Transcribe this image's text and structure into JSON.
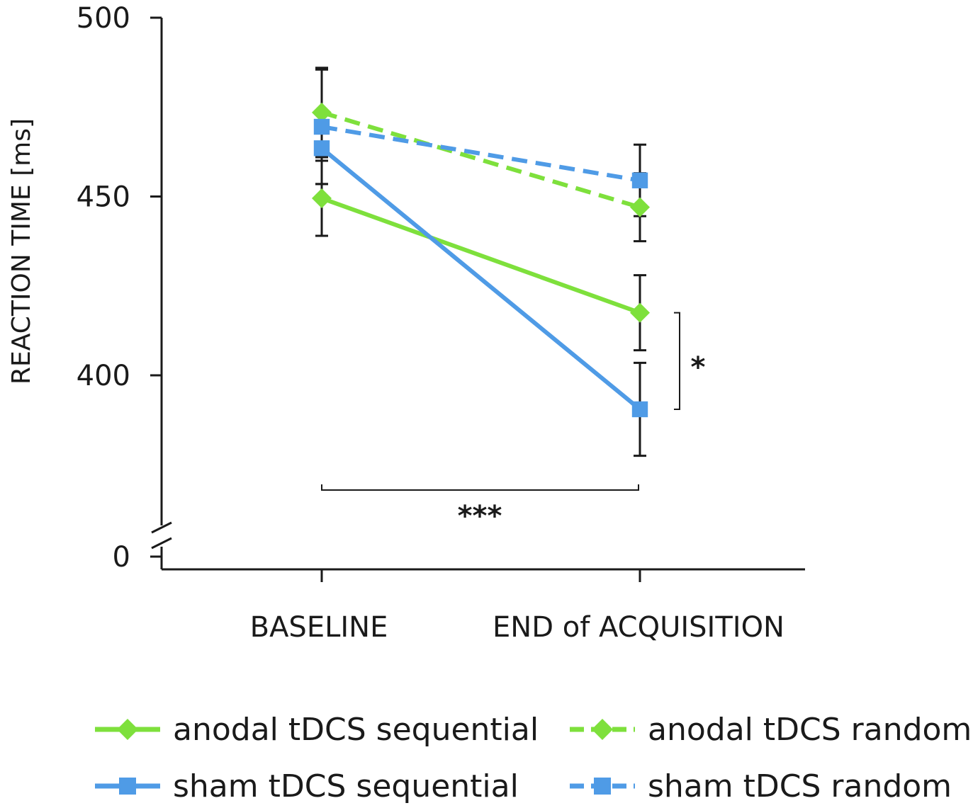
{
  "chart_data": {
    "type": "line",
    "title": "",
    "xlabel": "",
    "ylabel": "REACTION TIME [ms]",
    "categories": [
      "BASELINE",
      "END of ACQUISITION"
    ],
    "y_ticks": [
      "500",
      "450",
      "400",
      "0"
    ],
    "ylim": [
      370,
      500
    ],
    "axis_break": true,
    "grid": false,
    "legend_position": "bottom",
    "series": [
      {
        "name": "anodal tDCS sequential",
        "color": "#7ee03c",
        "dash": "solid",
        "marker": "diamond",
        "values": [
          449.5,
          417.5
        ],
        "errors": [
          10.5,
          10.5
        ]
      },
      {
        "name": "anodal tDCS random",
        "color": "#7ee03c",
        "dash": "dashed",
        "marker": "diamond",
        "values": [
          473.5,
          447.0
        ],
        "errors": [
          12.5,
          9.5
        ]
      },
      {
        "name": "sham tDCS sequential",
        "color": "#4f9be6",
        "dash": "solid",
        "marker": "square",
        "values": [
          463.5,
          390.5
        ],
        "errors": [
          10.0,
          13.0
        ]
      },
      {
        "name": "sham tDCS random",
        "color": "#4f9be6",
        "dash": "dashed",
        "marker": "square",
        "values": [
          469.5,
          454.5
        ],
        "errors": [
          16.0,
          10.0
        ]
      }
    ],
    "annotations": [
      {
        "label": "*",
        "type": "bracket-vertical",
        "between": [
          "anodal tDCS sequential",
          "sham tDCS sequential"
        ],
        "at": "END of ACQUISITION"
      },
      {
        "label": "***",
        "type": "bracket-horizontal",
        "between": [
          "BASELINE",
          "END of ACQUISITION"
        ]
      }
    ]
  }
}
